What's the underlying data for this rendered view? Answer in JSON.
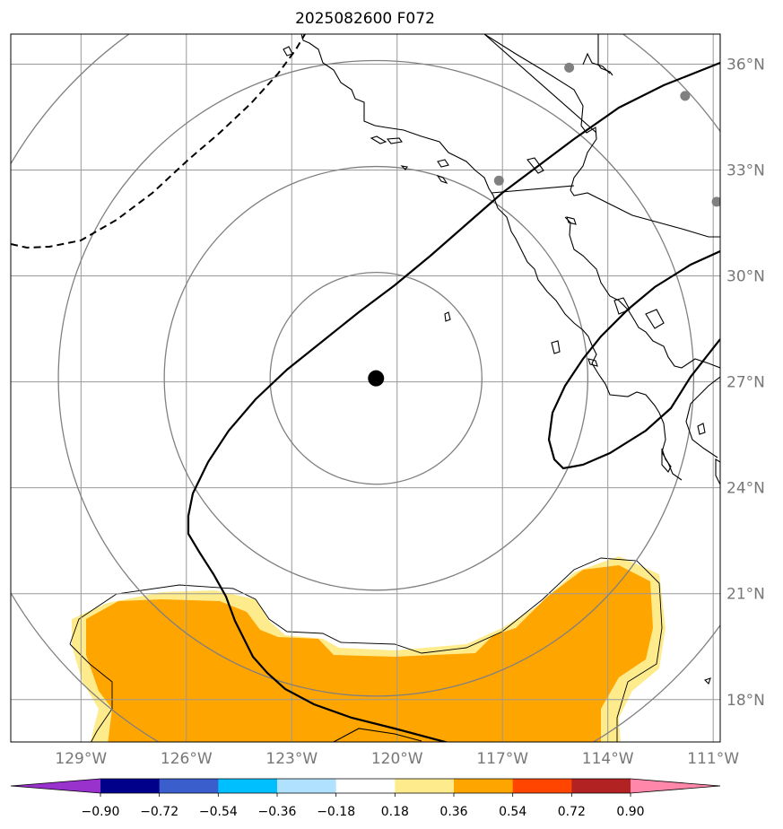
{
  "title": "2025082600 F072",
  "map": {
    "lon_range": [
      -131,
      -110.8
    ],
    "lat_range": [
      16.8,
      36.85
    ],
    "lon_ticks": [
      {
        "lon": -129,
        "label": "129°W"
      },
      {
        "lon": -126,
        "label": "126°W"
      },
      {
        "lon": -123,
        "label": "123°W"
      },
      {
        "lon": -120,
        "label": "120°W"
      },
      {
        "lon": -117,
        "label": "117°W"
      },
      {
        "lon": -114,
        "label": "114°W"
      },
      {
        "lon": -111,
        "label": "111°W"
      }
    ],
    "lat_ticks": [
      {
        "lat": 18,
        "label": "18°N"
      },
      {
        "lat": 21,
        "label": "21°N"
      },
      {
        "lat": 24,
        "label": "24°N"
      },
      {
        "lat": 27,
        "label": "27°N"
      },
      {
        "lat": 30,
        "label": "30°N"
      },
      {
        "lat": 33,
        "label": "33°N"
      },
      {
        "lat": 36,
        "label": "36°N"
      }
    ],
    "center": {
      "lon": -120.6,
      "lat": 27.1
    },
    "range_rings_deg": [
      3,
      6,
      9,
      12
    ],
    "stations": [
      {
        "lon": -117.1,
        "lat": 32.7
      },
      {
        "lon": -115.1,
        "lat": 35.9
      },
      {
        "lon": -111.8,
        "lat": 35.1
      },
      {
        "lon": -110.9,
        "lat": 32.1
      }
    ],
    "colors": {
      "gridline": "#999999",
      "ring": "#808080",
      "station": "#808080",
      "center_marker": "#000000",
      "pale_band": "#fdeb8c",
      "orange_band": "#ffa500"
    }
  },
  "colorbar": {
    "colors": [
      "#9932cc",
      "#00008b",
      "#3a5fcd",
      "#00bfff",
      "#b0e2ff",
      "#ffffff",
      "#fdeb8c",
      "#ffa500",
      "#ff4500",
      "#b22222",
      "#ff88aa"
    ],
    "ticks": [
      "−0.90",
      "−0.72",
      "−0.54",
      "−0.36",
      "−0.18",
      "0.18",
      "0.36",
      "0.54",
      "0.72",
      "0.90"
    ]
  }
}
